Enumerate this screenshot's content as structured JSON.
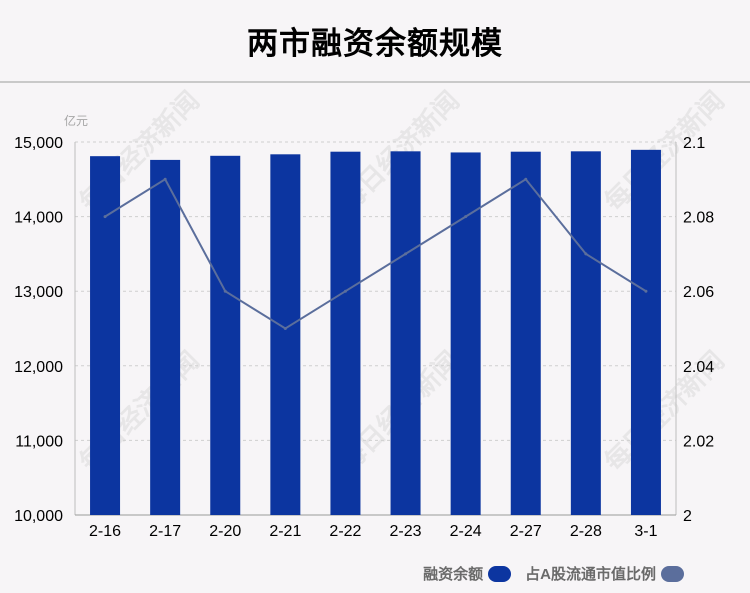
{
  "title": "两市融资余额规模",
  "watermark": "每日经济新闻",
  "colors": {
    "bar": "#0c35a0",
    "line": "#5b6e9c",
    "grid": "#cfcfcf",
    "axis_text": "#000000",
    "unit_text": "#a6a6a6",
    "title_rule": "#c9c9c9",
    "background": "#f7f5f7"
  },
  "legend": [
    {
      "label": "融资余额",
      "color": "#0c35a0"
    },
    {
      "label": "占A股流通市值比例",
      "color": "#5b6e9c"
    }
  ],
  "chart_data": {
    "type": "bar",
    "unit_label": "亿元",
    "categories": [
      "2-16",
      "2-17",
      "2-20",
      "2-21",
      "2-22",
      "2-23",
      "2-24",
      "2-27",
      "2-28",
      "3-1"
    ],
    "series": [
      {
        "name": "融资余额",
        "type": "bar",
        "axis": "left",
        "values": [
          14810,
          14760,
          14815,
          14835,
          14870,
          14875,
          14860,
          14870,
          14875,
          14895
        ]
      },
      {
        "name": "占A股流通市值比例",
        "type": "line",
        "axis": "right",
        "values": [
          2.08,
          2.09,
          2.06,
          2.05,
          2.06,
          2.07,
          2.08,
          2.09,
          2.07,
          2.06
        ]
      }
    ],
    "ylim_left": [
      10000,
      15000
    ],
    "yticks_left": [
      "10,000",
      "11,000",
      "12,000",
      "13,000",
      "14,000",
      "15,000"
    ],
    "ylim_right": [
      2.0,
      2.1
    ],
    "yticks_right": [
      "2",
      "2.02",
      "2.04",
      "2.06",
      "2.08",
      "2.1"
    ],
    "grid": true,
    "legend_position": "bottom-right"
  }
}
